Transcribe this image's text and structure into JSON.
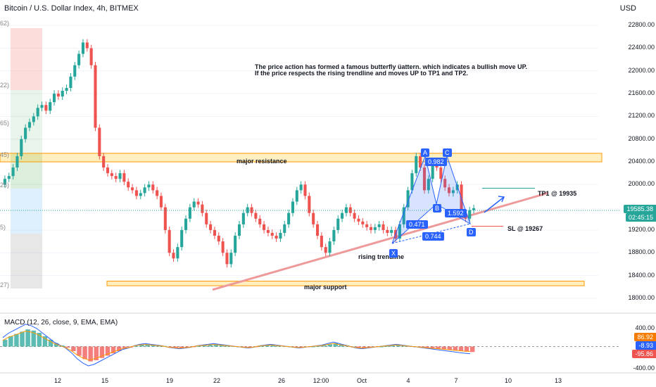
{
  "chart_data": {
    "type": "candlestick",
    "title": "Bitcoin / U.S. Dollar Index, 4h, BITMEX",
    "currency": "USD",
    "y_range": [
      17800,
      23000
    ],
    "y_ticks": [
      "22800.00",
      "22400.00",
      "22000.00",
      "21600.00",
      "21200.00",
      "20800.00",
      "20400.00",
      "20000.00",
      "19200.00",
      "18800.00",
      "18400.00",
      "18000.00"
    ],
    "x_ticks": [
      "12",
      "15",
      "19",
      "22",
      "26",
      "12:00",
      "Oct",
      "4",
      "7",
      "10",
      "13"
    ],
    "last_price": "19585.38",
    "countdown": "02:45:15",
    "annotation_lines": [
      "The price action has formed a famous butterfly üattern. which indicates a bullish move UP.",
      "If the price respects the rising trendline and moves UP to TP1 and TP2."
    ],
    "zones": [
      {
        "label": "major resistance",
        "low": 20400,
        "high": 20550,
        "color": "#ff9800"
      },
      {
        "label": "major support",
        "low": 18220,
        "high": 18300,
        "color": "#ff9800"
      }
    ],
    "trendline": {
      "label": "rising trendline",
      "from": 18150,
      "to": 19850,
      "color": "#ef9a9a"
    },
    "pattern_points": [
      {
        "label": "X",
        "price": 19020
      },
      {
        "label": "A",
        "price": 20520
      },
      {
        "label": "B",
        "price": 19700
      },
      {
        "label": "C",
        "price": 20520
      },
      {
        "label": "D",
        "price": 19280
      }
    ],
    "ratios": [
      "0.982",
      "0.471",
      "1.592",
      "0.744"
    ],
    "targets": [
      {
        "label": "TP1 @ 19935",
        "price": 19935
      },
      {
        "label": "SL @ 19267",
        "price": 19267
      }
    ],
    "fib_labels": [
      "62)",
      "22)",
      "65)",
      "45)",
      "25)",
      "5)",
      "27)"
    ],
    "candles": [
      20100,
      20150,
      20300,
      20500,
      20800,
      21000,
      21100,
      21200,
      21350,
      21400,
      21300,
      21450,
      21600,
      21550,
      21650,
      21700,
      21900,
      22100,
      22300,
      22500,
      22400,
      22100,
      21000,
      20500,
      20300,
      20200,
      20150,
      20100,
      20200,
      20050,
      19950,
      19900,
      19800,
      19850,
      19950,
      20000,
      19900,
      19800,
      19600,
      19200,
      18800,
      18700,
      18900,
      19200,
      19400,
      19600,
      19700,
      19650,
      19500,
      19300,
      19200,
      19100,
      19000,
      18800,
      18600,
      18800,
      19100,
      19300,
      19500,
      19600,
      19500,
      19400,
      19300,
      19200,
      19150,
      19100,
      19050,
      19150,
      19300,
      19500,
      19700,
      19900,
      20000,
      19800,
      19500,
      19300,
      19100,
      18900,
      18800,
      19000,
      19200,
      19400,
      19500,
      19600,
      19500,
      19400,
      19350,
      19300,
      19250,
      19200,
      19250,
      19300,
      19200,
      19150,
      19200,
      19050,
      19300,
      19600,
      19900,
      20200,
      20500,
      20300,
      19900,
      20100,
      20400,
      20300,
      20100,
      19950,
      19850,
      19900,
      20000,
      19500,
      19400,
      19550,
      19585
    ],
    "macd": {
      "label": "MACD (12, 26, close, 9, EMA, EMA)",
      "y_range": [
        -400,
        400
      ],
      "y_ticks": [
        "400.00",
        "-400.00"
      ],
      "values": [
        "86.92",
        "-8.93",
        "-95.86"
      ],
      "histogram": [
        120,
        180,
        220,
        260,
        300,
        280,
        240,
        180,
        120,
        60,
        20,
        -20,
        -80,
        -160,
        -220,
        -260,
        -240,
        -200,
        -160,
        -120,
        -80,
        -40,
        -20,
        10,
        30,
        40,
        30,
        20,
        10,
        -10,
        -20,
        -30,
        -20,
        -10,
        10,
        20,
        30,
        40,
        30,
        20,
        10,
        0,
        -10,
        -20,
        -10,
        10,
        20,
        30,
        20,
        10,
        0,
        -10,
        -20,
        -10,
        0,
        10,
        20,
        40,
        60,
        40,
        20,
        0,
        -20,
        -30,
        -20,
        -10,
        0,
        10,
        20,
        30,
        20,
        10,
        0,
        -10,
        -20,
        -30,
        -40,
        -50,
        -60,
        -70,
        -80,
        -90,
        -96
      ]
    }
  }
}
